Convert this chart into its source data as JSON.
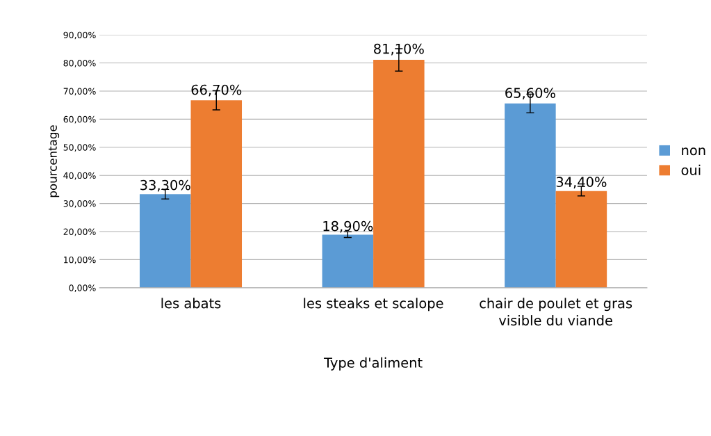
{
  "chart_data": {
    "type": "bar",
    "xlabel": "Type d'aliment",
    "ylabel": "pourcentage",
    "categories": [
      "les abats",
      "les steaks et scalope",
      "chair de poulet et gras visible du viande"
    ],
    "series": [
      {
        "name": "non",
        "color": "#5b9bd5",
        "values": [
          33.3,
          18.9,
          65.6
        ],
        "errors": [
          1.7,
          1.0,
          3.3
        ],
        "value_labels": [
          "33,30%",
          "18,90%",
          "65,60%"
        ]
      },
      {
        "name": "oui",
        "color": "#ed7d31",
        "values": [
          66.7,
          81.1,
          34.4
        ],
        "errors": [
          3.4,
          4.0,
          1.7
        ],
        "value_labels": [
          "66,70%",
          "81,10%",
          "34,40%"
        ]
      }
    ],
    "ylim": [
      0,
      90
    ],
    "yticks": [
      {
        "value": 0,
        "label": "0,00%"
      },
      {
        "value": 10,
        "label": "10,00%"
      },
      {
        "value": 20,
        "label": "20,00%"
      },
      {
        "value": 30,
        "label": "30,00%"
      },
      {
        "value": 40,
        "label": "40,00%"
      },
      {
        "value": 50,
        "label": "50,00%"
      },
      {
        "value": 60,
        "label": "60,00%"
      },
      {
        "value": 70,
        "label": "70,00%"
      },
      {
        "value": 80,
        "label": "80,00%"
      },
      {
        "value": 90,
        "label": "90,00%"
      }
    ],
    "grid": "y",
    "legend": "right"
  }
}
